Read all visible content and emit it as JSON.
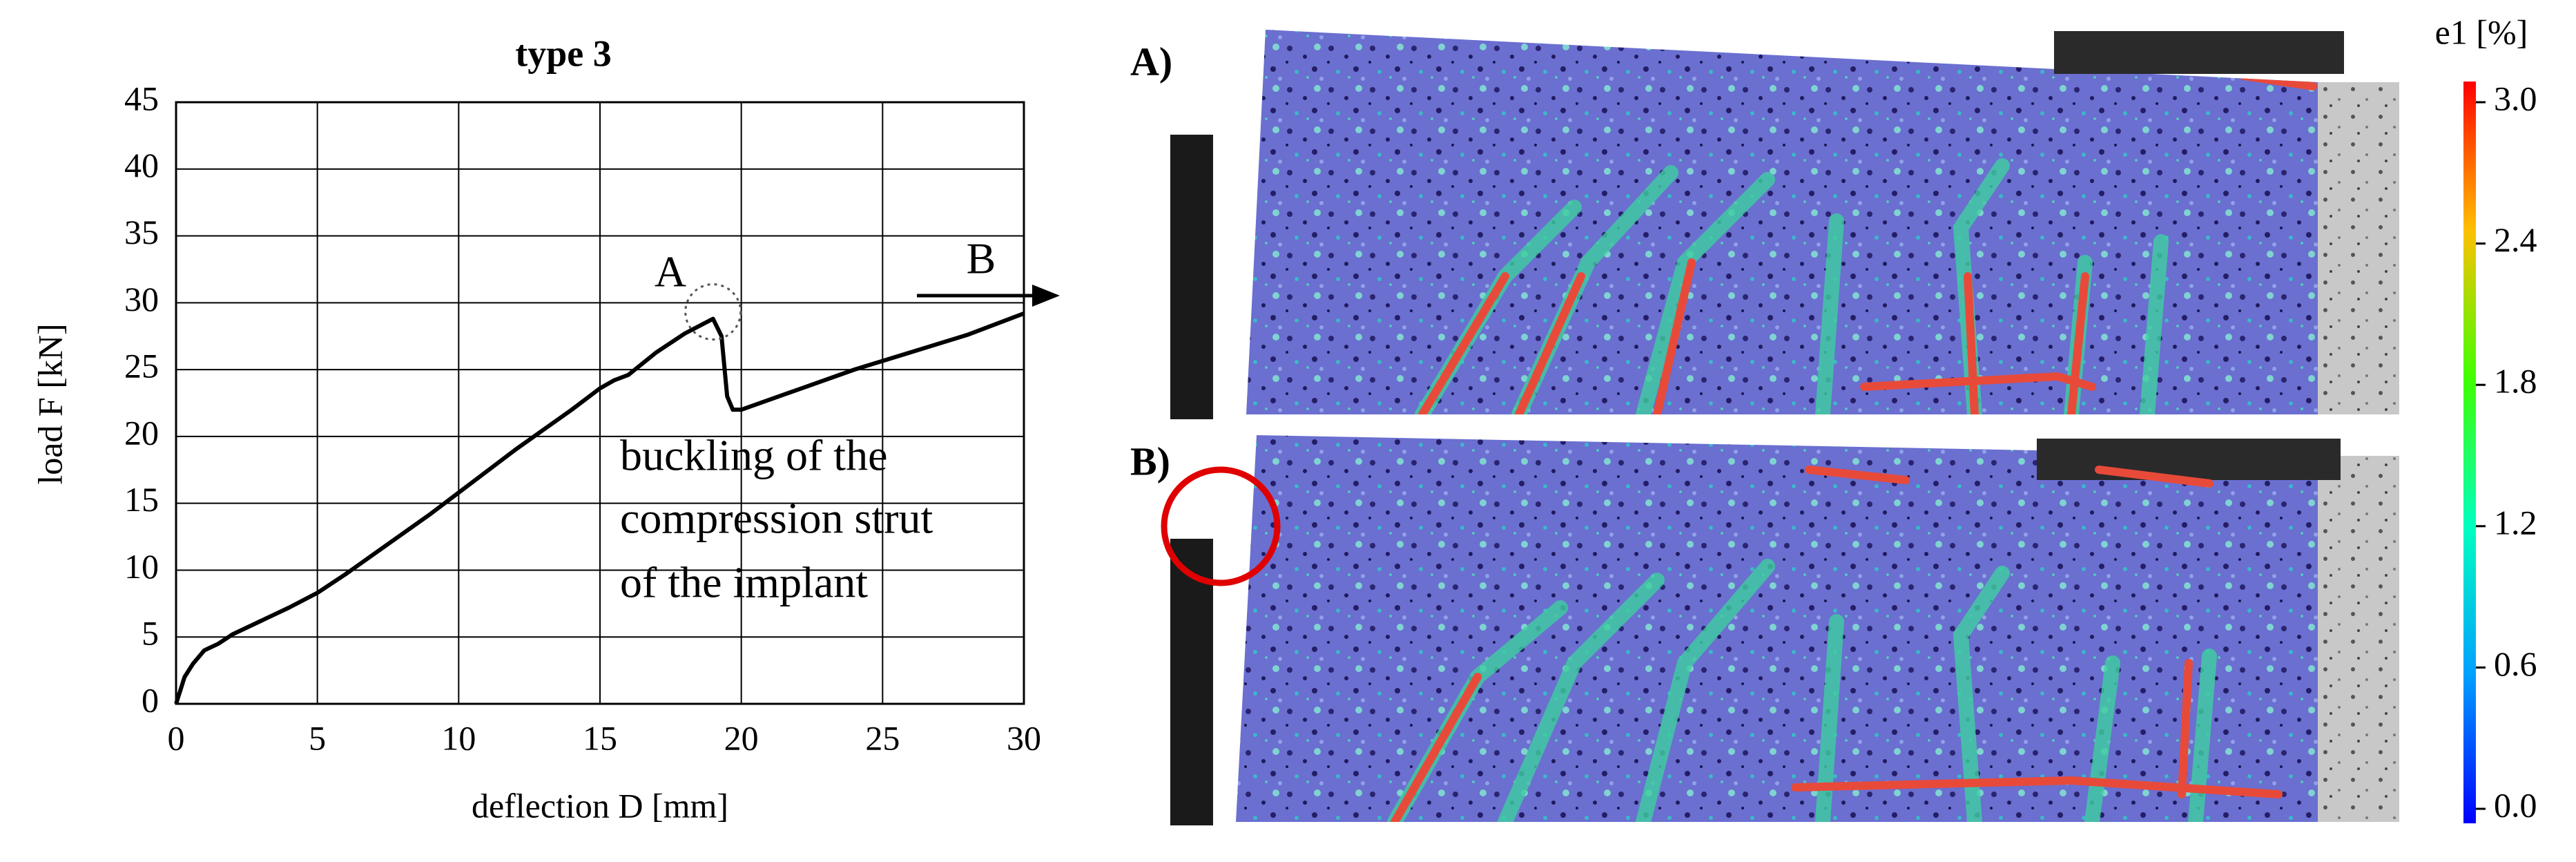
{
  "chart_data": {
    "type": "line",
    "title": "type 3",
    "xlabel": "deflection D [mm]",
    "ylabel": "load F [kN]",
    "x": [
      0,
      0.3,
      0.6,
      1,
      1.5,
      2,
      3,
      4,
      5,
      6,
      7,
      8,
      9,
      10,
      11,
      12,
      13,
      14,
      15,
      15.5,
      16,
      17,
      18,
      19,
      19.3,
      19.5,
      19.7,
      20,
      22,
      24,
      26,
      28,
      30
    ],
    "values": [
      0,
      2,
      3,
      4,
      4.5,
      5.2,
      6.2,
      7.2,
      8.3,
      9.7,
      11.2,
      12.7,
      14.2,
      15.8,
      17.4,
      19,
      20.5,
      22,
      23.6,
      24.2,
      24.6,
      26.3,
      27.7,
      28.8,
      27.5,
      23,
      22,
      22,
      23.5,
      25,
      26.3,
      27.6,
      29.2
    ],
    "color": "#000000",
    "xlim": [
      0,
      30
    ],
    "ylim": [
      0,
      45
    ],
    "xticks": [
      0,
      5,
      10,
      15,
      20,
      25,
      30
    ],
    "yticks": [
      0,
      5,
      10,
      15,
      20,
      25,
      30,
      35,
      40,
      45
    ],
    "grid": true,
    "annotations": [
      "A",
      "B",
      "buckling of the",
      "compression strut",
      "of the implant"
    ]
  },
  "photos": {
    "panels": [
      "A)",
      "B)"
    ],
    "colorbar": {
      "title": "e1 [%]",
      "lim": [
        0,
        3
      ],
      "ticks": [
        {
          "value": 0,
          "label": "0.0"
        },
        {
          "value": 0.6,
          "label": "0.6"
        },
        {
          "value": 1.2,
          "label": "1.2"
        },
        {
          "value": 1.8,
          "label": "1.8"
        },
        {
          "value": 2.4,
          "label": "2.4"
        },
        {
          "value": 3,
          "label": "3.0"
        }
      ]
    }
  }
}
